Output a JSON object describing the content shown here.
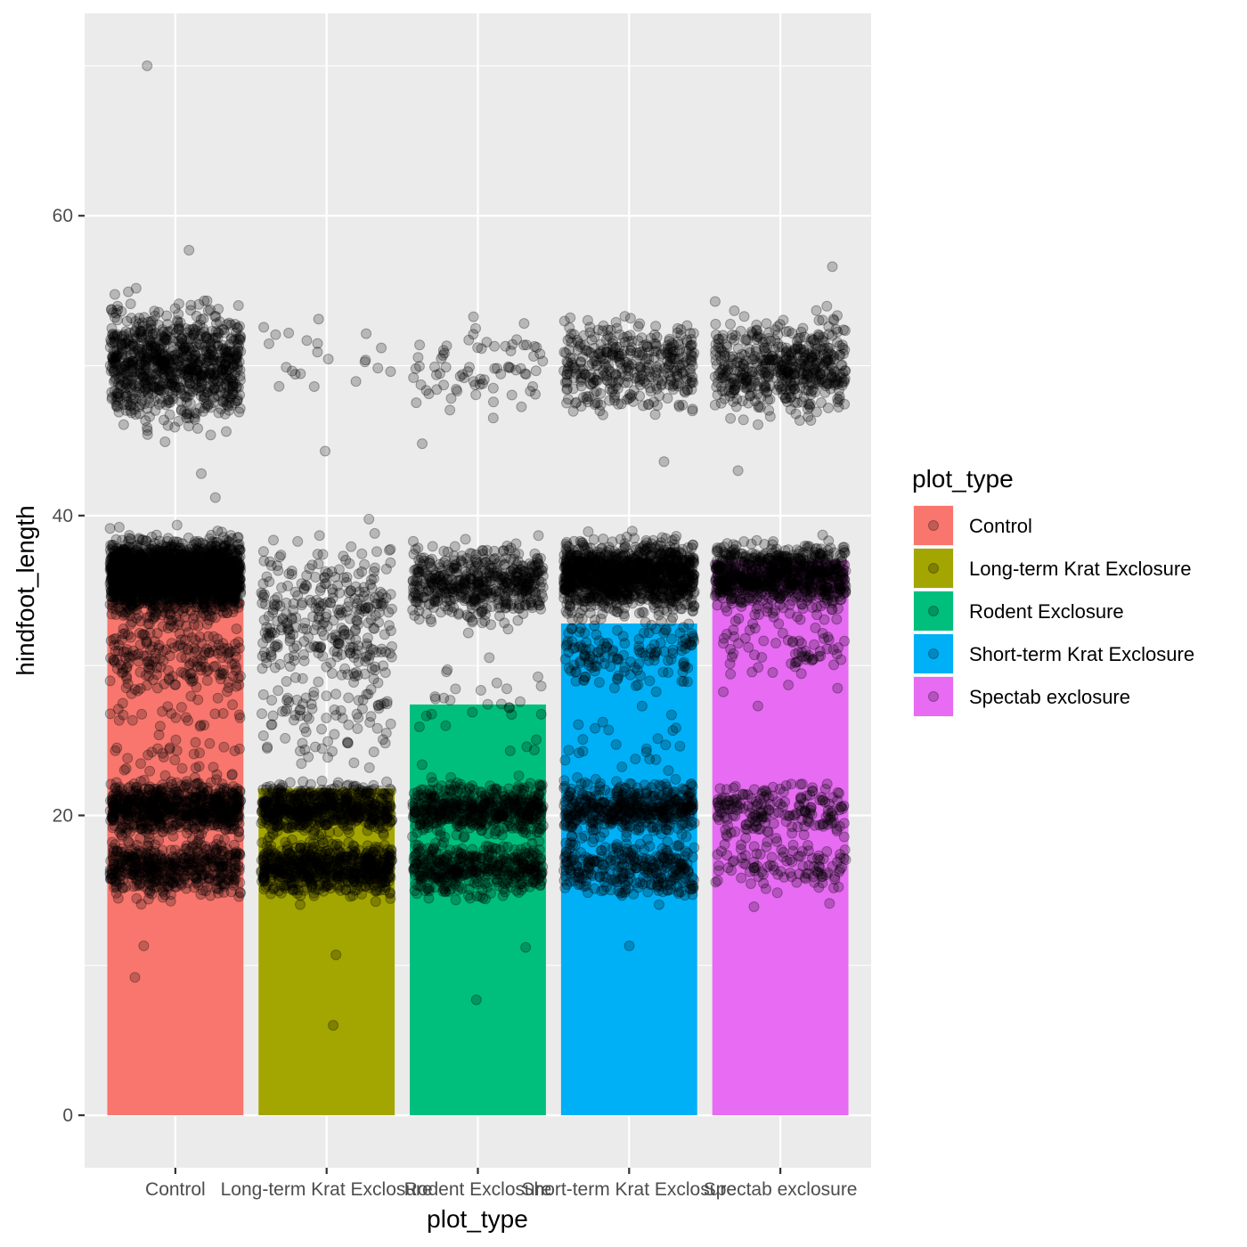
{
  "chart_data": {
    "type": "bar",
    "overlay": "jittered scatter (geom_jitter, alpha 0.25, black points)",
    "title": "",
    "xlabel": "plot_type",
    "ylabel": "hindfoot_length",
    "categories": [
      "Control",
      "Long-term Krat Exclosure",
      "Rodent Exclosure",
      "Short-term Krat Exclosure",
      "Spectab exclosure"
    ],
    "values": [
      34.4,
      21.8,
      27.4,
      32.8,
      37.0
    ],
    "colors": [
      "#F8766D",
      "#A3A500",
      "#00BF7D",
      "#00B0F6",
      "#E76BF3"
    ],
    "ylim": [
      -3.5,
      73.5
    ],
    "y_ticks": [
      0,
      20,
      40,
      60
    ],
    "y_tick_labels": [
      "0",
      "20",
      "40",
      "60"
    ],
    "grid": true,
    "legend": {
      "title": "plot_type",
      "position": "right",
      "entries": [
        "Control",
        "Long-term Krat Exclosure",
        "Rodent Exclosure",
        "Short-term Krat Exclosure",
        "Spectab exclosure"
      ]
    },
    "point_clusters": [
      {
        "category": "Control",
        "clusters": [
          {
            "center": 50,
            "spread": 3.5,
            "count": 900
          },
          {
            "center": 36,
            "spread": 2.2,
            "count": 2200
          },
          {
            "center": 31,
            "spread": 3,
            "count": 220
          },
          {
            "center": 20.5,
            "spread": 1.6,
            "count": 700
          },
          {
            "center": 16.5,
            "spread": 1.8,
            "count": 500
          },
          {
            "center": 25,
            "spread": 4,
            "count": 70
          }
        ],
        "outliers": [
          70,
          57.7,
          9.2,
          11.3,
          42.8,
          41.2
        ]
      },
      {
        "category": "Long-term Krat Exclosure",
        "clusters": [
          {
            "center": 50,
            "spread": 3,
            "count": 22
          },
          {
            "center": 33,
            "spread": 5,
            "count": 330
          },
          {
            "center": 20.5,
            "spread": 1.5,
            "count": 600
          },
          {
            "center": 16.5,
            "spread": 1.7,
            "count": 650
          },
          {
            "center": 26,
            "spread": 3,
            "count": 70
          }
        ],
        "outliers": [
          6,
          10.7,
          44.3
        ]
      },
      {
        "category": "Rodent Exclosure",
        "clusters": [
          {
            "center": 50,
            "spread": 3,
            "count": 75
          },
          {
            "center": 35.5,
            "spread": 2.2,
            "count": 520
          },
          {
            "center": 20.5,
            "spread": 1.6,
            "count": 500
          },
          {
            "center": 16.5,
            "spread": 1.7,
            "count": 420
          },
          {
            "center": 27,
            "spread": 4,
            "count": 30
          }
        ],
        "outliers": [
          7.7,
          11.2,
          44.8
        ]
      },
      {
        "category": "Short-term Krat Exclosure",
        "clusters": [
          {
            "center": 50,
            "spread": 3,
            "count": 380
          },
          {
            "center": 36,
            "spread": 2.2,
            "count": 1200
          },
          {
            "center": 31,
            "spread": 2.5,
            "count": 150
          },
          {
            "center": 20.5,
            "spread": 1.6,
            "count": 450
          },
          {
            "center": 16.5,
            "spread": 1.8,
            "count": 300
          },
          {
            "center": 25,
            "spread": 3,
            "count": 25
          }
        ],
        "outliers": [
          11.3,
          43.6
        ]
      },
      {
        "category": "Spectab exclosure",
        "clusters": [
          {
            "center": 50,
            "spread": 3,
            "count": 520
          },
          {
            "center": 36,
            "spread": 2,
            "count": 800
          },
          {
            "center": 31.5,
            "spread": 2.5,
            "count": 80
          },
          {
            "center": 20.5,
            "spread": 1.6,
            "count": 190
          },
          {
            "center": 16.5,
            "spread": 1.8,
            "count": 110
          }
        ],
        "outliers": [
          56.6,
          27.3,
          28.7,
          43
        ]
      }
    ]
  }
}
